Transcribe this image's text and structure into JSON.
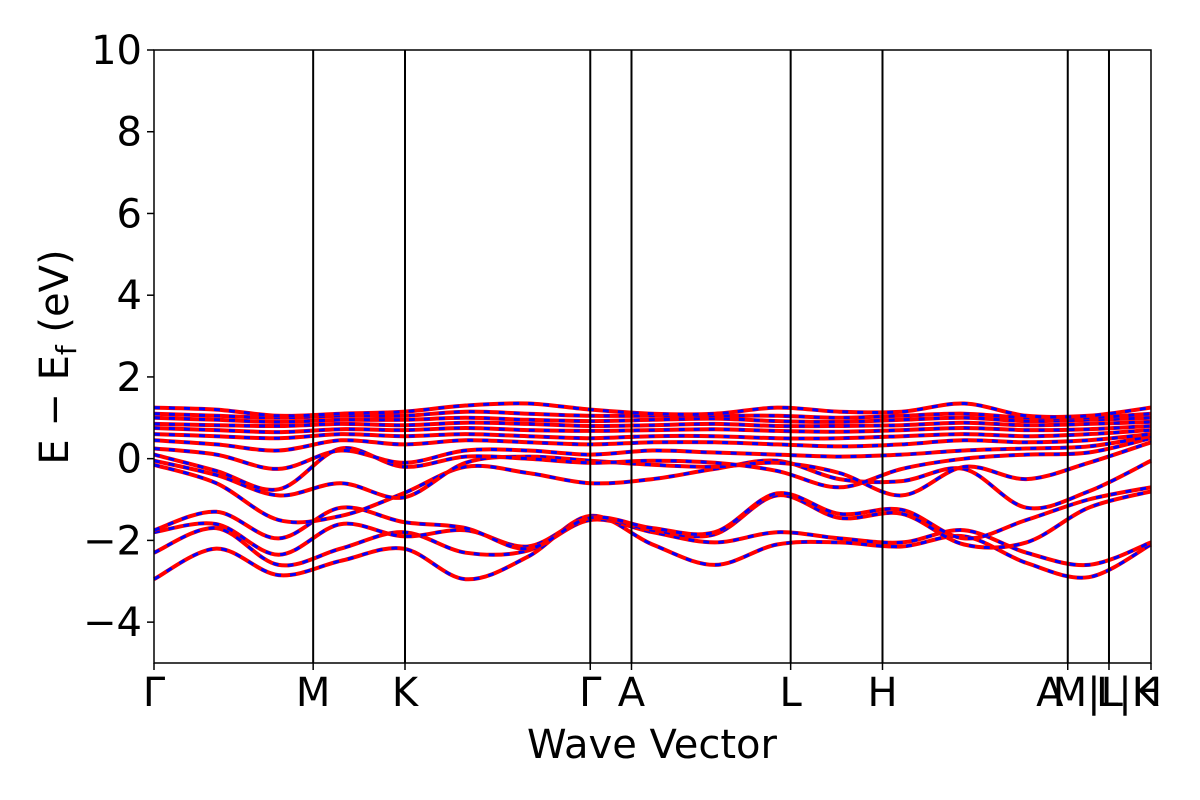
{
  "chart_data": {
    "type": "line",
    "title": "",
    "xlabel": "Wave Vector",
    "ylabel_main": "E − E",
    "ylabel_sub": "f",
    "ylabel_tail": " (eV)",
    "ylim": [
      -5,
      10
    ],
    "xlim": [
      0,
      6.264
    ],
    "yticks": [
      -4,
      -2,
      0,
      2,
      4,
      6,
      8,
      10
    ],
    "ytick_labels": [
      "−4",
      "−2",
      "0",
      "2",
      "4",
      "6",
      "8",
      "10"
    ],
    "kpoints": [
      {
        "label": "Γ",
        "x": 0.0
      },
      {
        "label": "M",
        "x": 1.0
      },
      {
        "label": "K",
        "x": 1.577
      },
      {
        "label": "Γ",
        "x": 2.741
      },
      {
        "label": "A",
        "x": 3.0
      },
      {
        "label": "L",
        "x": 4.0
      },
      {
        "label": "H",
        "x": 4.577
      },
      {
        "label": "A",
        "x": 5.741
      },
      {
        "label": "M|L",
        "x": 5.741
      },
      {
        "label": "L|K",
        "x": 6.0
      },
      {
        "label": "H",
        "x": 6.264
      }
    ],
    "grid": false,
    "series": [
      {
        "color": "#ff0000",
        "style": "solid",
        "bands": [
          [
            -2.95,
            -2.2,
            -2.85,
            -2.5,
            -2.2,
            -2.95,
            -2.4,
            -1.4,
            -2.1,
            -2.6,
            -2.1,
            -2.05,
            -2.15,
            -1.9,
            -2.55,
            -2.9,
            -2.1
          ],
          [
            -2.3,
            -1.7,
            -2.6,
            -2.2,
            -1.8,
            -2.3,
            -2.25,
            -1.5,
            -1.8,
            -2.05,
            -1.8,
            -1.95,
            -2.05,
            -1.75,
            -2.3,
            -2.6,
            -2.05
          ],
          [
            -1.8,
            -1.6,
            -2.35,
            -1.6,
            -1.9,
            -1.75,
            -2.15,
            -1.45,
            -1.75,
            -1.85,
            -0.9,
            -1.45,
            -1.35,
            -2.1,
            -2.05,
            -1.2,
            -0.8
          ],
          [
            -1.75,
            -1.3,
            -1.95,
            -1.2,
            -1.55,
            -1.7,
            -2.2,
            -1.45,
            -1.7,
            -1.8,
            -0.85,
            -1.35,
            -1.25,
            -1.95,
            -1.5,
            -1.0,
            -0.7
          ],
          [
            -0.15,
            -0.6,
            -1.5,
            -1.4,
            -0.85,
            -0.2,
            -0.35,
            -0.6,
            -0.5,
            -0.25,
            -0.05,
            -0.5,
            -0.55,
            -0.25,
            -1.2,
            -0.8,
            -0.05
          ],
          [
            -0.05,
            -0.4,
            -0.9,
            -0.6,
            -0.95,
            -0.1,
            0.05,
            -0.05,
            -0.15,
            -0.2,
            -0.1,
            -0.35,
            -0.9,
            -0.2,
            -0.5,
            -0.1,
            0.4
          ],
          [
            0.1,
            -0.3,
            -0.75,
            0.25,
            -0.2,
            0.05,
            0.0,
            -0.1,
            -0.05,
            -0.1,
            -0.3,
            -0.7,
            -0.25,
            0.0,
            0.1,
            0.15,
            0.5
          ],
          [
            0.25,
            0.1,
            -0.25,
            0.2,
            -0.1,
            0.2,
            0.2,
            0.1,
            0.2,
            0.15,
            0.1,
            0.05,
            0.1,
            0.2,
            0.25,
            0.3,
            0.55
          ],
          [
            0.45,
            0.35,
            0.2,
            0.45,
            0.35,
            0.45,
            0.4,
            0.35,
            0.4,
            0.4,
            0.35,
            0.3,
            0.35,
            0.45,
            0.4,
            0.45,
            0.6
          ],
          [
            0.6,
            0.55,
            0.5,
            0.6,
            0.55,
            0.6,
            0.55,
            0.5,
            0.55,
            0.55,
            0.5,
            0.5,
            0.55,
            0.6,
            0.55,
            0.6,
            0.7
          ],
          [
            0.75,
            0.7,
            0.65,
            0.72,
            0.7,
            0.75,
            0.7,
            0.68,
            0.7,
            0.72,
            0.68,
            0.66,
            0.7,
            0.75,
            0.7,
            0.72,
            0.8
          ],
          [
            0.85,
            0.82,
            0.8,
            0.85,
            0.82,
            0.88,
            0.85,
            0.8,
            0.82,
            0.85,
            0.8,
            0.8,
            0.82,
            0.88,
            0.82,
            0.85,
            0.9
          ],
          [
            1.0,
            0.95,
            0.9,
            0.95,
            0.95,
            1.0,
            0.95,
            0.92,
            0.95,
            0.98,
            0.92,
            0.9,
            0.95,
            1.0,
            0.92,
            0.95,
            1.0
          ],
          [
            1.1,
            1.05,
            1.0,
            1.05,
            1.05,
            1.15,
            1.1,
            1.05,
            1.05,
            1.05,
            1.05,
            1.0,
            1.05,
            1.1,
            1.0,
            1.0,
            1.1
          ],
          [
            1.25,
            1.2,
            1.05,
            1.1,
            1.15,
            1.3,
            1.35,
            1.2,
            1.1,
            1.1,
            1.25,
            1.15,
            1.15,
            1.35,
            1.05,
            1.05,
            1.25
          ]
        ]
      },
      {
        "color": "#0000ff",
        "style": "dashed",
        "bands": "same"
      }
    ]
  }
}
